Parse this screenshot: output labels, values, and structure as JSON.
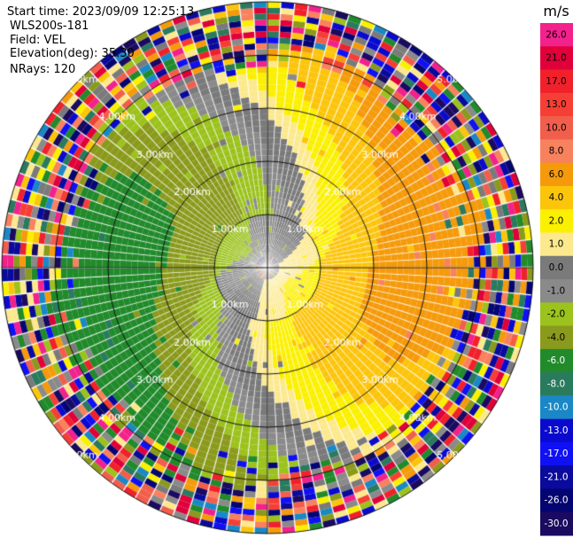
{
  "header": {
    "start_time": "Start time: 2023/09/09 12:25:13",
    "instrument": "WLS200s-181",
    "field": "Field: VEL",
    "elevation": "Elevation(deg): 35.30",
    "nrays": "NRays: 120"
  },
  "colorbar": {
    "unit": "m/s",
    "ticks": [
      "26.0",
      "21.0",
      "17.0",
      "13.0",
      "10.0",
      "8.0",
      "6.0",
      "4.0",
      "2.0",
      "1.0",
      "0.0",
      "-1.0",
      "-2.0",
      "-4.0",
      "-6.0",
      "-8.0",
      "-10.0",
      "-13.0",
      "-17.0",
      "-21.0",
      "-26.0",
      "-30.0"
    ],
    "colors": [
      "#f2218c",
      "#e0003a",
      "#f0212b",
      "#f53f35",
      "#f25e4c",
      "#f8815e",
      "#f59a0b",
      "#fcc50c",
      "#fbf000",
      "#fce98e",
      "#7a7a7a",
      "#8a8a8a",
      "#9bc21d",
      "#8a9a1c",
      "#218a2b",
      "#2a7a5e",
      "#1a88c6",
      "#0a0acf",
      "#1010f5",
      "#0a0a9c",
      "#050572",
      "#1a0a60"
    ]
  },
  "chart_data": {
    "type": "ppi",
    "field": "VEL",
    "nrays": 120,
    "range_ring_labels": [
      "1.00km",
      "2.00km",
      "3.00km",
      "4.00km",
      "5.00km"
    ],
    "range_rings_km": [
      1,
      2,
      3,
      4,
      5
    ],
    "max_range_km": 5.0,
    "velocity_unit": "m/s",
    "velocity_range": [
      -30,
      26
    ],
    "pattern": {
      "description_sectors": [
        {
          "azimuth_deg": [
            0,
            135
          ],
          "velocity": 6,
          "note": "orange/yellow band NE"
        },
        {
          "azimuth_deg": [
            180,
            315
          ],
          "velocity": -6,
          "note": "green band SW"
        },
        {
          "azimuth_deg": [
            135,
            180
          ],
          "velocity": 0,
          "note": "grey zero-line"
        },
        {
          "azimuth_deg": [
            315,
            360
          ],
          "velocity": 0,
          "note": "grey zero-line"
        }
      ],
      "noise_beyond_km": 4.0
    }
  }
}
